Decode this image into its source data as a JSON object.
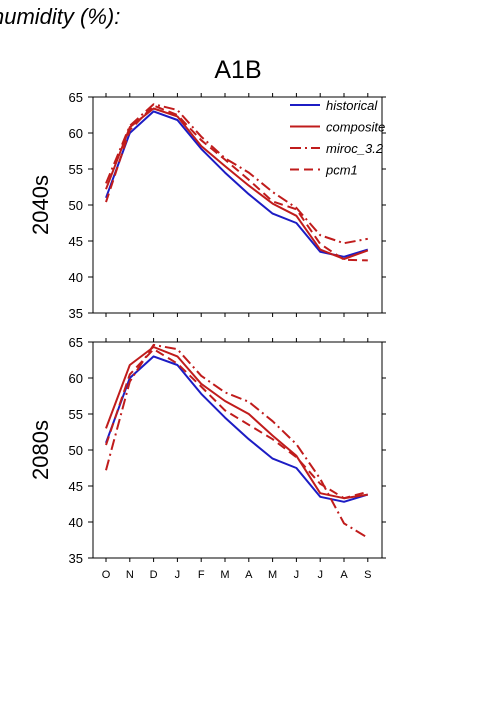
{
  "heading": "humidity (%):",
  "title": "A1B",
  "colors": {
    "historical": "#1c1cc4",
    "model": "#c01c1c"
  },
  "legend": {
    "placement": "top-right",
    "entries": [
      {
        "name": "historical",
        "color": "#1c1cc4",
        "dash": "solid"
      },
      {
        "name": "composite",
        "color": "#c01c1c",
        "dash": "solid"
      },
      {
        "name": "miroc_3.2",
        "color": "#c01c1c",
        "dash": "dashdot"
      },
      {
        "name": "pcm1",
        "color": "#c01c1c",
        "dash": "dash"
      }
    ]
  },
  "chart_data": [
    {
      "type": "line",
      "panel_label": "2040s",
      "categories": [
        "O",
        "N",
        "D",
        "J",
        "F",
        "M",
        "A",
        "M",
        "J",
        "J",
        "A",
        "S"
      ],
      "ylim": [
        35,
        65
      ],
      "yticks": [
        35,
        40,
        45,
        50,
        55,
        60,
        65
      ],
      "series": [
        {
          "name": "historical",
          "values": [
            51.0,
            60.0,
            63.0,
            61.8,
            57.8,
            54.5,
            51.5,
            48.8,
            47.5,
            43.5,
            42.8,
            43.8
          ]
        },
        {
          "name": "composite",
          "values": [
            52.2,
            60.8,
            63.4,
            62.3,
            58.2,
            55.4,
            52.7,
            50.2,
            48.5,
            43.8,
            42.5,
            43.7
          ]
        },
        {
          "name": "miroc_3.2",
          "values": [
            53.0,
            61.0,
            64.0,
            63.2,
            59.5,
            56.5,
            54.5,
            51.8,
            49.6,
            45.8,
            44.7,
            45.3
          ]
        },
        {
          "name": "pcm1",
          "values": [
            50.4,
            60.4,
            63.8,
            62.5,
            59.0,
            56.3,
            53.5,
            50.5,
            49.4,
            44.6,
            42.4,
            42.3
          ]
        }
      ]
    },
    {
      "type": "line",
      "panel_label": "2080s",
      "categories": [
        "O",
        "N",
        "D",
        "J",
        "F",
        "M",
        "A",
        "M",
        "J",
        "J",
        "A",
        "S"
      ],
      "ylim": [
        35,
        65
      ],
      "yticks": [
        35,
        40,
        45,
        50,
        55,
        60,
        65
      ],
      "series": [
        {
          "name": "historical",
          "values": [
            51.0,
            60.0,
            63.0,
            61.8,
            57.8,
            54.5,
            51.5,
            48.8,
            47.5,
            43.5,
            42.8,
            43.8
          ]
        },
        {
          "name": "composite",
          "values": [
            53.0,
            61.8,
            64.3,
            63.0,
            59.2,
            56.8,
            55.0,
            52.0,
            49.2,
            44.0,
            43.3,
            43.8
          ]
        },
        {
          "name": "miroc_3.2",
          "values": [
            47.2,
            59.5,
            64.6,
            64.0,
            60.3,
            58.0,
            56.7,
            54.0,
            50.8,
            46.0,
            39.8,
            37.8
          ]
        },
        {
          "name": "pcm1",
          "values": [
            50.7,
            60.5,
            64.0,
            62.0,
            58.8,
            55.5,
            53.5,
            51.5,
            49.0,
            45.3,
            43.3,
            44.2
          ]
        }
      ]
    }
  ]
}
